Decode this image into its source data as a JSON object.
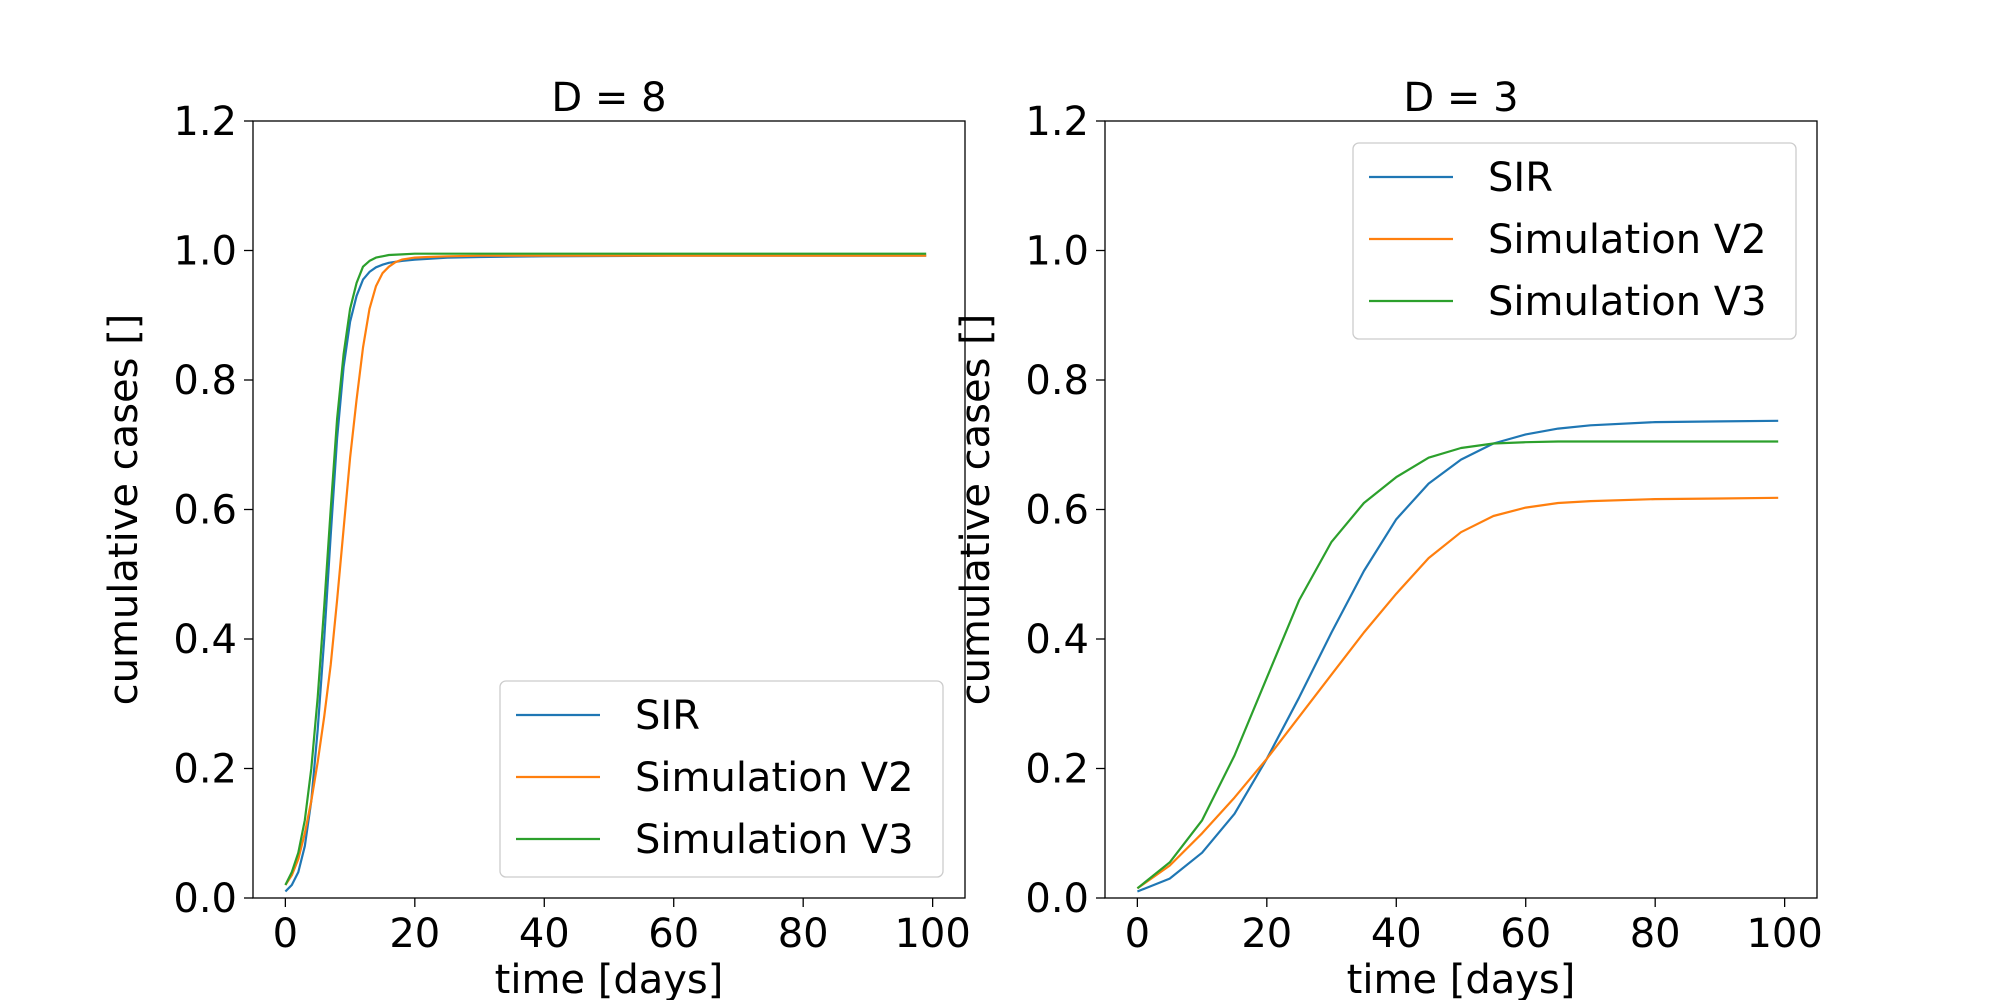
{
  "chart_data": [
    {
      "type": "line",
      "title": "D = 8",
      "xlabel": "time [days]",
      "ylabel": "cumulative cases []",
      "xlim": [
        -5,
        105
      ],
      "ylim": [
        0.0,
        1.2
      ],
      "xticks": [
        0,
        20,
        40,
        60,
        80,
        100
      ],
      "xtick_labels": [
        "0",
        "20",
        "40",
        "60",
        "80",
        "100"
      ],
      "yticks": [
        0.0,
        0.2,
        0.4,
        0.6,
        0.8,
        1.0,
        1.2
      ],
      "ytick_labels": [
        "0.0",
        "0.2",
        "0.4",
        "0.6",
        "0.8",
        "1.0",
        "1.2"
      ],
      "grid": false,
      "legend_position": "lower-right",
      "series": [
        {
          "name": "SIR",
          "color": "#1f77b4",
          "x": [
            0,
            1,
            2,
            3,
            4,
            5,
            6,
            7,
            8,
            9,
            10,
            11,
            12,
            13,
            14,
            15,
            16,
            18,
            20,
            25,
            30,
            40,
            60,
            80,
            99
          ],
          "y": [
            0.01,
            0.02,
            0.04,
            0.08,
            0.15,
            0.26,
            0.4,
            0.56,
            0.71,
            0.82,
            0.89,
            0.93,
            0.955,
            0.967,
            0.974,
            0.978,
            0.981,
            0.984,
            0.986,
            0.989,
            0.99,
            0.991,
            0.992,
            0.992,
            0.992
          ]
        },
        {
          "name": "Simulation V2",
          "color": "#ff7f0e",
          "x": [
            0,
            1,
            2,
            3,
            4,
            5,
            6,
            7,
            8,
            9,
            10,
            11,
            12,
            13,
            14,
            15,
            16,
            17,
            18,
            20,
            22,
            25,
            30,
            40,
            60,
            80,
            99
          ],
          "y": [
            0.02,
            0.035,
            0.06,
            0.1,
            0.15,
            0.21,
            0.28,
            0.36,
            0.46,
            0.57,
            0.68,
            0.77,
            0.85,
            0.91,
            0.945,
            0.965,
            0.975,
            0.982,
            0.986,
            0.989,
            0.99,
            0.991,
            0.992,
            0.992,
            0.992,
            0.992,
            0.992
          ]
        },
        {
          "name": "Simulation V3",
          "color": "#2ca02c",
          "x": [
            0,
            1,
            2,
            3,
            4,
            5,
            6,
            7,
            8,
            9,
            10,
            11,
            12,
            13,
            14,
            15,
            16,
            18,
            20,
            25,
            30,
            40,
            60,
            80,
            99
          ],
          "y": [
            0.02,
            0.04,
            0.07,
            0.12,
            0.2,
            0.31,
            0.45,
            0.6,
            0.74,
            0.84,
            0.91,
            0.95,
            0.975,
            0.984,
            0.989,
            0.991,
            0.993,
            0.994,
            0.995,
            0.995,
            0.995,
            0.995,
            0.995,
            0.995,
            0.995
          ]
        }
      ]
    },
    {
      "type": "line",
      "title": "D = 3",
      "xlabel": "time [days]",
      "ylabel": "cumulative cases []",
      "xlim": [
        -5,
        105
      ],
      "ylim": [
        0.0,
        1.2
      ],
      "xticks": [
        0,
        20,
        40,
        60,
        80,
        100
      ],
      "xtick_labels": [
        "0",
        "20",
        "40",
        "60",
        "80",
        "100"
      ],
      "yticks": [
        0.0,
        0.2,
        0.4,
        0.6,
        0.8,
        1.0,
        1.2
      ],
      "ytick_labels": [
        "0.0",
        "0.2",
        "0.4",
        "0.6",
        "0.8",
        "1.0",
        "1.2"
      ],
      "grid": false,
      "legend_position": "upper-right",
      "series": [
        {
          "name": "SIR",
          "color": "#1f77b4",
          "x": [
            0,
            5,
            10,
            15,
            20,
            25,
            30,
            35,
            40,
            45,
            50,
            55,
            60,
            65,
            70,
            80,
            90,
            99
          ],
          "y": [
            0.01,
            0.03,
            0.07,
            0.13,
            0.215,
            0.31,
            0.41,
            0.505,
            0.585,
            0.64,
            0.677,
            0.702,
            0.716,
            0.725,
            0.73,
            0.735,
            0.736,
            0.737
          ]
        },
        {
          "name": "Simulation V2",
          "color": "#ff7f0e",
          "x": [
            0,
            5,
            10,
            15,
            20,
            25,
            30,
            35,
            40,
            45,
            50,
            55,
            60,
            65,
            70,
            80,
            90,
            99
          ],
          "y": [
            0.015,
            0.05,
            0.1,
            0.155,
            0.215,
            0.28,
            0.345,
            0.41,
            0.47,
            0.525,
            0.565,
            0.59,
            0.603,
            0.61,
            0.613,
            0.616,
            0.617,
            0.618
          ]
        },
        {
          "name": "Simulation V3",
          "color": "#2ca02c",
          "x": [
            0,
            5,
            10,
            15,
            20,
            25,
            30,
            35,
            40,
            45,
            50,
            55,
            60,
            65,
            70,
            80,
            90,
            99
          ],
          "y": [
            0.015,
            0.055,
            0.12,
            0.22,
            0.34,
            0.46,
            0.55,
            0.61,
            0.65,
            0.68,
            0.695,
            0.702,
            0.704,
            0.705,
            0.705,
            0.705,
            0.705,
            0.705
          ]
        }
      ]
    }
  ]
}
